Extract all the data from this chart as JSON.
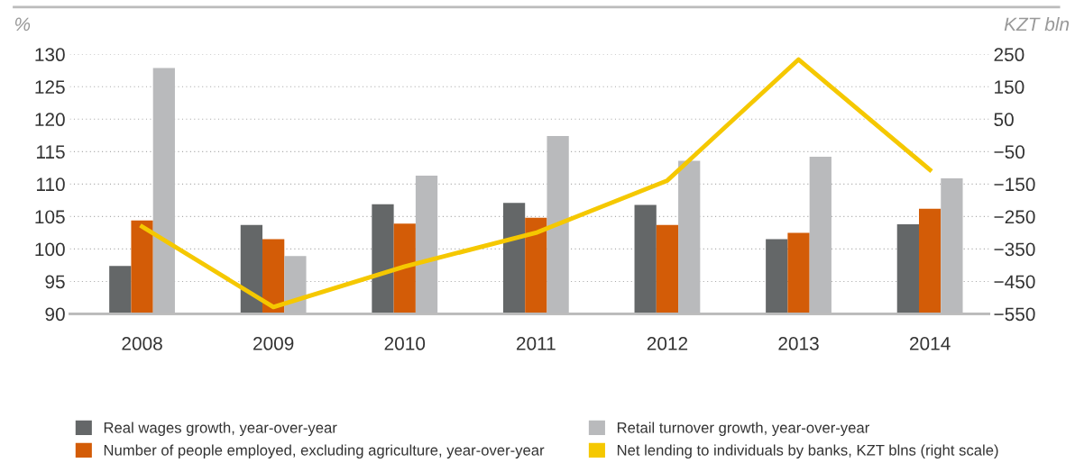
{
  "chart_data": {
    "type": "bar",
    "ylabel": "%",
    "y2label": "KZT bln",
    "categories": [
      "2008",
      "2009",
      "2010",
      "2011",
      "2012",
      "2013",
      "2014"
    ],
    "series": [
      {
        "name": "Real wages growth, year-over-year",
        "color": "#646768",
        "values": [
          97.4,
          103.7,
          106.9,
          107.1,
          106.8,
          101.5,
          103.8
        ]
      },
      {
        "name": "Number of people employed, excluding agriculture, year-over-year",
        "color": "#d35c07",
        "values": [
          104.4,
          101.5,
          103.9,
          104.8,
          103.7,
          102.5,
          106.2
        ]
      },
      {
        "name": "Retail turnover growth, year-over-year",
        "color": "#b9babc",
        "values": [
          127.9,
          98.9,
          111.3,
          117.4,
          113.6,
          114.2,
          110.9
        ]
      },
      {
        "name": "Net lending to individuals by banks, KZT blns (right scale)",
        "type": "line",
        "axis": "y2",
        "color": "#f5c800",
        "values": [
          -281,
          -529,
          -404,
          -300,
          -139,
          234,
          -106
        ]
      }
    ],
    "ylim": [
      90,
      130
    ],
    "yticks": [
      90,
      95,
      100,
      105,
      110,
      115,
      120,
      125,
      130
    ],
    "y2lim": [
      -550,
      250
    ],
    "y2ticks": [
      {
        "value": -550,
        "label": "−550"
      },
      {
        "value": -450,
        "label": "−450"
      },
      {
        "value": -350,
        "label": "−350"
      },
      {
        "value": -250,
        "label": "−250"
      },
      {
        "value": -150,
        "label": "−150"
      },
      {
        "value": -50,
        "label": "−50"
      },
      50,
      150,
      250
    ],
    "grid": "y",
    "legend": "bottom"
  }
}
